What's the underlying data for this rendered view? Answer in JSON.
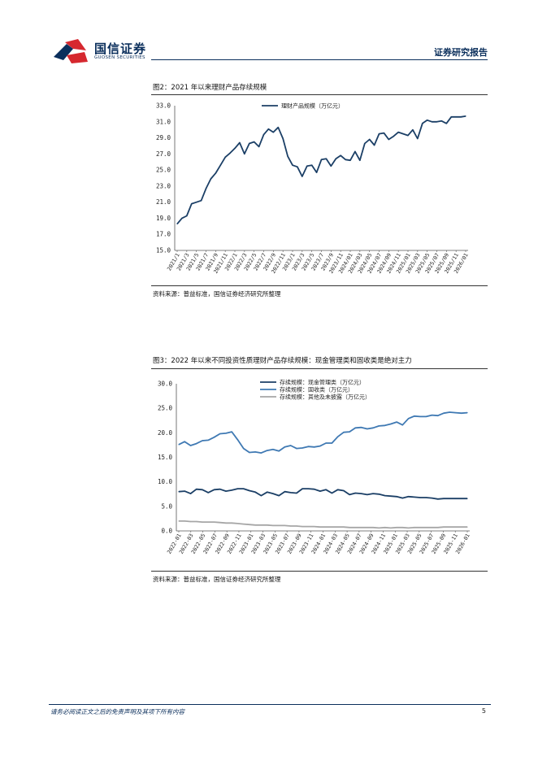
{
  "header": {
    "logo_cn": "国信证券",
    "logo_en": "GUOSEN SECURITIES",
    "title": "证券研究报告"
  },
  "figure2": {
    "title": "图2：2021 年以来理财产品存续规模",
    "source": "资料来源：普益标准，国信证券经济研究所整理"
  },
  "figure3": {
    "title": "图3：2022 年以来不同投资性质理财产品存续规模：现金管理类和固收类是绝对主力",
    "source": "资料来源：普益标准，国信证券经济研究所整理"
  },
  "footer": {
    "disclaimer": "请务必阅读正文之后的免责声明及其项下所有内容",
    "page": "5"
  },
  "colors": {
    "brand_navy": "#0b2f5c",
    "brand_red": "#d6282f",
    "series_dark": "#1b3f66",
    "series_mid": "#3f79b3",
    "series_gray": "#a6a6a6"
  },
  "chart_data": [
    {
      "type": "line",
      "title": "",
      "ylim": [
        15.0,
        33.0
      ],
      "yticks": [
        "33.0",
        "31.0",
        "29.0",
        "27.0",
        "25.0",
        "23.0",
        "21.0",
        "19.0",
        "17.0",
        "15.0"
      ],
      "xticks": [
        "2021/1",
        "2021/3",
        "2021/5",
        "2021/7",
        "2021/9",
        "2021/11",
        "2022/1",
        "2022/3",
        "2022/5",
        "2022/7",
        "2022/9",
        "2022/11",
        "2023/1",
        "2023/3",
        "2023/5",
        "2023/7",
        "2023/9",
        "2023/11",
        "2024/01",
        "2024/03",
        "2024/05",
        "2024/07",
        "2024/09",
        "2024/11",
        "2025/01",
        "2025/03",
        "2025/05",
        "2025/07",
        "2025/09",
        "2025/11",
        "2026/01"
      ],
      "legend_position": "top-center",
      "series": [
        {
          "name": "理财产品规模（万亿元）",
          "color": "#1b3f66",
          "values": [
            18.3,
            19.0,
            19.3,
            20.8,
            21.0,
            21.2,
            22.7,
            23.9,
            24.6,
            25.6,
            26.6,
            27.1,
            27.7,
            28.4,
            27.0,
            28.3,
            28.5,
            27.9,
            29.4,
            30.1,
            29.7,
            30.3,
            28.9,
            26.7,
            25.6,
            25.4,
            24.2,
            25.5,
            25.6,
            24.7,
            26.3,
            26.4,
            25.5,
            26.4,
            26.8,
            26.3,
            26.2,
            27.3,
            26.2,
            28.3,
            28.8,
            28.1,
            29.5,
            29.6,
            28.8,
            29.2,
            29.7,
            29.5,
            29.3,
            30.0,
            28.9,
            30.8,
            31.2,
            31.0,
            31.0,
            31.1,
            30.8,
            31.6,
            31.6,
            31.6,
            31.7
          ]
        }
      ]
    },
    {
      "type": "line",
      "title": "",
      "ylim": [
        0.0,
        30.0
      ],
      "yticks": [
        "30.0",
        "25.0",
        "20.0",
        "15.0",
        "10.0",
        "5.0",
        "0.0"
      ],
      "xticks": [
        "2022-01",
        "2022-03",
        "2022-05",
        "2022-07",
        "2022-09",
        "2022-11",
        "2023-01",
        "2023-03",
        "2023-05",
        "2023-07",
        "2023-09",
        "2023-11",
        "2024-01",
        "2024-03",
        "2024-05",
        "2024-07",
        "2024-09",
        "2024-11",
        "2025-01",
        "2025-03",
        "2025-05",
        "2025-07",
        "2025-09",
        "2025-11",
        "2026-01"
      ],
      "legend_position": "top-center",
      "series": [
        {
          "name": "存续规模：现金管理类（万亿元）",
          "color": "#1b3f66",
          "values": [
            8.0,
            8.1,
            7.6,
            8.5,
            8.4,
            7.8,
            8.4,
            8.5,
            8.1,
            8.3,
            8.6,
            8.6,
            8.2,
            7.9,
            7.2,
            7.9,
            7.6,
            7.2,
            8.0,
            7.8,
            7.7,
            8.6,
            8.6,
            8.5,
            8.1,
            8.4,
            7.7,
            8.4,
            8.2,
            7.4,
            7.7,
            7.6,
            7.4,
            7.6,
            7.5,
            7.2,
            7.1,
            7.0,
            6.7,
            7.0,
            6.9,
            6.8,
            6.8,
            6.7,
            6.5,
            6.6,
            6.6,
            6.6,
            6.6,
            6.6
          ]
        },
        {
          "name": "存续规模：固收类（万亿元）",
          "color": "#3f79b3",
          "values": [
            17.6,
            18.2,
            17.4,
            17.8,
            18.4,
            18.5,
            19.1,
            19.8,
            19.9,
            20.2,
            18.6,
            16.8,
            16.0,
            16.1,
            15.9,
            16.4,
            16.6,
            16.3,
            17.1,
            17.4,
            16.8,
            16.9,
            17.2,
            17.1,
            17.3,
            17.9,
            17.9,
            19.2,
            20.1,
            20.2,
            21.0,
            21.1,
            20.8,
            21.0,
            21.4,
            21.5,
            21.8,
            22.2,
            21.6,
            22.9,
            23.4,
            23.3,
            23.3,
            23.6,
            23.5,
            24.0,
            24.2,
            24.1,
            24.0,
            24.1
          ]
        },
        {
          "name": "存续规模：其他及未披露（万亿元）",
          "color": "#a6a6a6",
          "values": [
            2.0,
            2.0,
            1.9,
            1.9,
            1.8,
            1.8,
            1.8,
            1.7,
            1.6,
            1.6,
            1.5,
            1.4,
            1.3,
            1.2,
            1.2,
            1.2,
            1.1,
            1.1,
            1.1,
            1.0,
            1.0,
            0.9,
            0.9,
            0.9,
            0.8,
            0.8,
            0.8,
            0.8,
            0.8,
            0.7,
            0.7,
            0.7,
            0.7,
            0.7,
            0.6,
            0.7,
            0.6,
            0.7,
            0.7,
            0.6,
            0.7,
            0.7,
            0.7,
            0.7,
            0.7,
            0.8,
            0.8,
            0.8,
            0.8,
            0.8
          ]
        }
      ]
    }
  ]
}
